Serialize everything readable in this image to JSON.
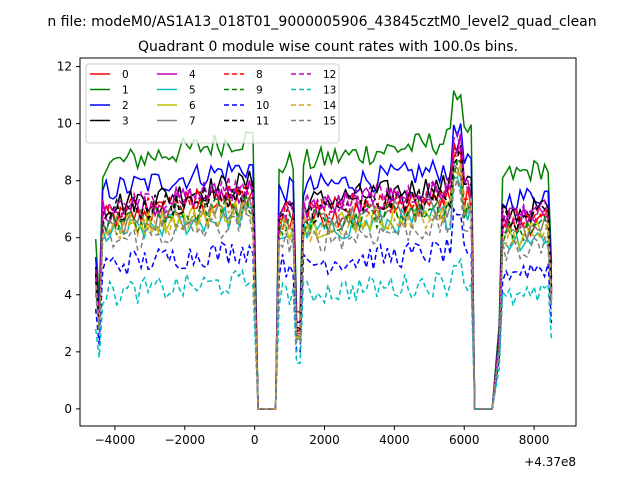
{
  "figure": {
    "suptitle": "n file: modeM0/AS1A13_018T01_9000005906_43845cztM0_level2_quad_clean",
    "offset_label": "+4.37e8"
  },
  "chart_data": {
    "type": "line",
    "title": "Quadrant 0 module wise count rates with 100.0s bins.",
    "xlabel": "",
    "ylabel": "",
    "x_offset": 437000000,
    "xlim": [
      -5000,
      9200
    ],
    "ylim": [
      -0.6,
      12.3
    ],
    "xticks": [
      -4000,
      -2000,
      0,
      2000,
      4000,
      6000,
      8000
    ],
    "xtick_labels": [
      "−4000",
      "−2000",
      "0",
      "2000",
      "4000",
      "6000",
      "8000"
    ],
    "yticks": [
      0,
      2,
      4,
      6,
      8,
      10,
      12
    ],
    "ytick_labels": [
      "0",
      "2",
      "4",
      "6",
      "8",
      "10",
      "12"
    ],
    "grid": false,
    "legend_position": "upper-left",
    "legend_columns": 4,
    "segments": [
      [
        -4550,
        0
      ],
      [
        600,
        6200
      ],
      [
        6900,
        8500
      ]
    ],
    "gap_x": [
      100,
      600,
      6300,
      6800
    ],
    "series": [
      {
        "name": "0",
        "color": "#ff0000",
        "dash": "solid",
        "level": 6.6
      },
      {
        "name": "1",
        "color": "#008000",
        "dash": "solid",
        "level": 8.5
      },
      {
        "name": "2",
        "color": "#0000ff",
        "dash": "solid",
        "level": 7.6
      },
      {
        "name": "3",
        "color": "#000000",
        "dash": "solid",
        "level": 7.1
      },
      {
        "name": "4",
        "color": "#bf00bf",
        "dash": "solid",
        "level": 6.9
      },
      {
        "name": "5",
        "color": "#00bfbf",
        "dash": "solid",
        "level": 6.1
      },
      {
        "name": "6",
        "color": "#bfbf00",
        "dash": "solid",
        "level": 6.3
      },
      {
        "name": "7",
        "color": "#808080",
        "dash": "solid",
        "level": 6.4
      },
      {
        "name": "8",
        "color": "#ff0000",
        "dash": "dashed",
        "level": 6.8
      },
      {
        "name": "9",
        "color": "#008000",
        "dash": "dashed",
        "level": 6.4
      },
      {
        "name": "10",
        "color": "#0000ff",
        "dash": "dashed",
        "level": 5.0
      },
      {
        "name": "11",
        "color": "#000000",
        "dash": "dashed",
        "level": 6.8
      },
      {
        "name": "12",
        "color": "#bf00bf",
        "dash": "dashed",
        "level": 7.0
      },
      {
        "name": "13",
        "color": "#00bfbf",
        "dash": "dashed",
        "level": 4.0
      },
      {
        "name": "14",
        "color": "#daa520",
        "dash": "dashed",
        "level": 6.2
      },
      {
        "name": "15",
        "color": "#808080",
        "dash": "dashed",
        "level": 5.8
      }
    ]
  }
}
